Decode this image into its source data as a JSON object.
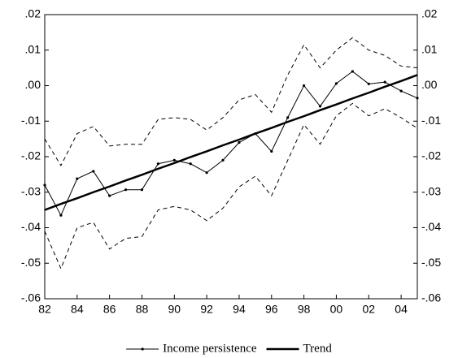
{
  "chart_data": {
    "type": "line",
    "categories": [
      "82",
      null,
      "84",
      null,
      "86",
      null,
      "88",
      null,
      "90",
      null,
      "92",
      null,
      "94",
      null,
      "96",
      null,
      "98",
      null,
      "00",
      null,
      "02",
      null,
      "04",
      null
    ],
    "series": [
      {
        "name": "Income persistence",
        "color": "#000000",
        "width": 1,
        "marker": true,
        "dashed": false,
        "values": [
          -0.028,
          -0.0365,
          -0.0262,
          -0.0241,
          -0.031,
          -0.0293,
          -0.0293,
          -0.022,
          -0.021,
          -0.022,
          -0.0245,
          -0.021,
          -0.016,
          -0.0135,
          -0.0185,
          -0.009,
          0.0,
          -0.0058,
          0.0006,
          0.004,
          0.0005,
          0.001,
          -0.0015,
          -0.0035
        ]
      },
      {
        "name": "Trend",
        "color": "#000000",
        "width": 2.5,
        "marker": false,
        "dashed": false,
        "values": [
          -0.035,
          -0.0333,
          -0.0317,
          -0.03,
          -0.0284,
          -0.0267,
          -0.0251,
          -0.0234,
          -0.0218,
          -0.0201,
          -0.0185,
          -0.0168,
          -0.0152,
          -0.0135,
          -0.0119,
          -0.0102,
          -0.0086,
          -0.0069,
          -0.0053,
          -0.0036,
          -0.002,
          -0.0003,
          0.0013,
          0.003
        ]
      },
      {
        "color": "#000000",
        "width": 1,
        "marker": false,
        "dashed": true,
        "values": [
          -0.015,
          -0.0225,
          -0.0135,
          -0.0115,
          -0.017,
          -0.0165,
          -0.0165,
          -0.0095,
          -0.009,
          -0.0095,
          -0.0125,
          -0.009,
          -0.004,
          -0.0025,
          -0.0075,
          0.003,
          0.0115,
          0.005,
          0.01,
          0.0135,
          0.01,
          0.0085,
          0.0055,
          0.005
        ]
      },
      {
        "color": "#000000",
        "width": 1,
        "marker": false,
        "dashed": true,
        "values": [
          -0.041,
          -0.0515,
          -0.04,
          -0.0385,
          -0.046,
          -0.043,
          -0.0425,
          -0.035,
          -0.034,
          -0.035,
          -0.038,
          -0.0345,
          -0.0285,
          -0.0255,
          -0.031,
          -0.021,
          -0.011,
          -0.0165,
          -0.0085,
          -0.005,
          -0.0085,
          -0.0065,
          -0.009,
          -0.012
        ]
      }
    ],
    "ylim": [
      -0.06,
      0.02
    ],
    "yticks": [
      {
        "value": -0.06,
        "label": "-.06"
      },
      {
        "value": -0.05,
        "label": "-.05"
      },
      {
        "value": -0.04,
        "label": "-.04"
      },
      {
        "value": -0.03,
        "label": "-.03"
      },
      {
        "value": -0.02,
        "label": "-.02"
      },
      {
        "value": -0.01,
        "label": "-.01"
      },
      {
        "value": 0.0,
        "label": ".00"
      },
      {
        "value": 0.01,
        "label": ".01"
      },
      {
        "value": 0.02,
        "label": ".02"
      }
    ],
    "right_axis_mirror": true,
    "legend": "bottom"
  }
}
